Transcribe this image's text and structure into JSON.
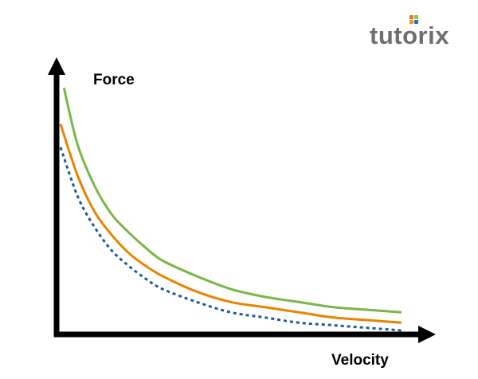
{
  "logo": {
    "text": "tutorix",
    "text_color": "#6d6e71",
    "dot_colors": [
      "#f26b3a",
      "#8dc63f",
      "#f7941d",
      "#1b75bc"
    ]
  },
  "chart_data": {
    "type": "line",
    "title": "",
    "xlabel": "Velocity",
    "ylabel": "Force",
    "grid": false,
    "legend": "none",
    "series": [
      {
        "color": "#7ab648",
        "style": "solid",
        "x": [
          0.1,
          0.5,
          1,
          1.5,
          2,
          2.5,
          3,
          4,
          5,
          6,
          7,
          8,
          9,
          10
        ],
        "y": [
          0.94,
          0.72,
          0.56,
          0.45,
          0.38,
          0.32,
          0.27,
          0.21,
          0.16,
          0.13,
          0.11,
          0.09,
          0.08,
          0.07
        ]
      },
      {
        "color": "#e98300",
        "style": "solid",
        "x": [
          0,
          0.5,
          1,
          1.5,
          2,
          2.5,
          3,
          4,
          5,
          6,
          7,
          8,
          9,
          10
        ],
        "y": [
          0.8,
          0.6,
          0.46,
          0.37,
          0.3,
          0.25,
          0.21,
          0.15,
          0.11,
          0.09,
          0.07,
          0.05,
          0.04,
          0.03
        ]
      },
      {
        "color": "#1f5a96",
        "style": "dashed",
        "x": [
          0,
          0.5,
          1,
          1.5,
          2,
          2.5,
          3,
          4,
          5,
          6,
          7,
          8,
          9,
          10
        ],
        "y": [
          0.71,
          0.52,
          0.4,
          0.31,
          0.25,
          0.2,
          0.16,
          0.11,
          0.07,
          0.05,
          0.03,
          0.02,
          0.01,
          0
        ]
      }
    ]
  }
}
